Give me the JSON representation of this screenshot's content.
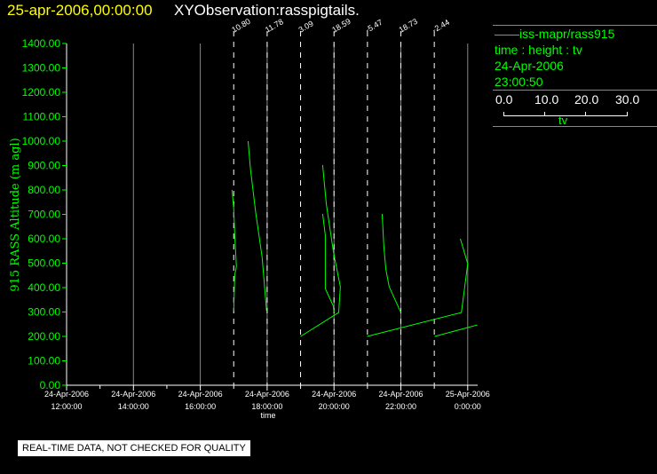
{
  "header": {
    "date": "25-apr-2006,00:00:00",
    "name": "XYObservation:rasspigtails."
  },
  "legend": {
    "series": "——iss-mapr/rass915",
    "vars": "time : height : tv",
    "date": "24-Apr-2006",
    "time": "23:00:50",
    "scale_ticks": [
      "0.0",
      "10.0",
      "20.0",
      "30.0"
    ],
    "scale_label": "tv",
    "colors": {
      "series": "#00ff00",
      "axis_x": "#ffffff",
      "axis_y": "#00ff00"
    }
  },
  "footer": "REAL-TIME DATA, NOT CHECKED FOR QUALITY",
  "chart_data": {
    "type": "line",
    "xlabel": "time",
    "ylabel": "915 RASS Altitude (m agl)",
    "ylim": [
      0,
      1400
    ],
    "xlim_hours": [
      12,
      24.3
    ],
    "yticks": [
      "0.00",
      "100.00",
      "200.00",
      "300.00",
      "400.00",
      "500.00",
      "600.00",
      "700.00",
      "800.00",
      "900.00",
      "1000.00",
      "1100.00",
      "1200.00",
      "1300.00",
      "1400.00"
    ],
    "xticks": [
      {
        "hour": 12,
        "l1": "24-Apr-2006",
        "l2": "12:00:00"
      },
      {
        "hour": 14,
        "l1": "24-Apr-2006",
        "l2": "14:00:00"
      },
      {
        "hour": 16,
        "l1": "24-Apr-2006",
        "l2": "16:00:00"
      },
      {
        "hour": 18,
        "l1": "24-Apr-2006",
        "l2": "18:00:00"
      },
      {
        "hour": 20,
        "l1": "24-Apr-2006",
        "l2": "20:00:00"
      },
      {
        "hour": 22,
        "l1": "24-Apr-2006",
        "l2": "22:00:00"
      },
      {
        "hour": 24,
        "l1": "25-Apr-2006",
        "l2": "0:00:00"
      }
    ],
    "grid": true,
    "profile_markers": [
      {
        "hour": 17,
        "label": "10.80"
      },
      {
        "hour": 18,
        "label": "11.78"
      },
      {
        "hour": 19,
        "label": "3.09"
      },
      {
        "hour": 20,
        "label": "18.59"
      },
      {
        "hour": 21,
        "label": "-5.47"
      },
      {
        "hour": 22,
        "label": "18.73"
      },
      {
        "hour": 23,
        "label": "-2.44"
      }
    ],
    "series": [
      {
        "points": [
          [
            16.95,
            800
          ],
          [
            17.0,
            724
          ],
          [
            17.03,
            615
          ],
          [
            17.08,
            487
          ],
          [
            17.03,
            451
          ],
          [
            17.0,
            305
          ]
        ]
      },
      {
        "points": [
          [
            17.43,
            1000
          ],
          [
            17.5,
            887
          ],
          [
            17.66,
            705
          ],
          [
            17.85,
            524
          ],
          [
            17.96,
            342
          ],
          [
            17.98,
            305
          ]
        ]
      },
      {
        "points": [
          [
            19.66,
            902
          ],
          [
            19.77,
            742
          ],
          [
            19.98,
            549
          ],
          [
            20.03,
            513
          ],
          [
            20.19,
            404
          ],
          [
            20.14,
            298
          ],
          [
            19.0,
            200
          ]
        ]
      },
      {
        "points": [
          [
            19.66,
            702
          ],
          [
            19.74,
            615
          ],
          [
            19.74,
            396
          ],
          [
            19.98,
            324
          ],
          [
            20.0,
            298
          ]
        ]
      },
      {
        "points": [
          [
            21.44,
            702
          ],
          [
            21.49,
            571
          ],
          [
            21.55,
            476
          ],
          [
            21.65,
            404
          ],
          [
            22.0,
            298
          ]
        ]
      },
      {
        "points": [
          [
            20.99,
            200
          ],
          [
            23.81,
            298
          ],
          [
            23.86,
            349
          ],
          [
            24.0,
            498
          ],
          [
            23.78,
            600
          ]
        ]
      },
      {
        "points": [
          [
            23.01,
            200
          ],
          [
            24.29,
            247
          ]
        ]
      }
    ]
  }
}
